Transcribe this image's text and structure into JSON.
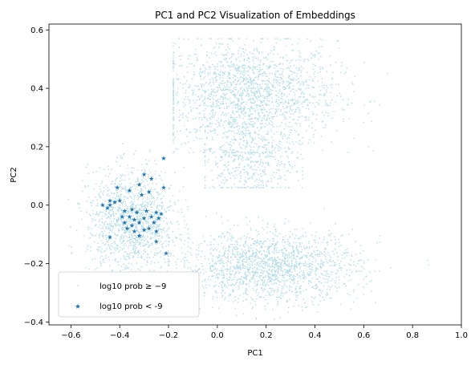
{
  "chart_data": {
    "type": "scatter",
    "title": "PC1 and PC2 Visualization of Embeddings",
    "xlabel": "PC1",
    "ylabel": "PC2",
    "xlim": [
      -0.69,
      1.0
    ],
    "ylim": [
      -0.41,
      0.62
    ],
    "xticks": [
      "-0.6",
      "-0.4",
      "-0.2",
      "0.0",
      "0.2",
      "0.4",
      "0.6",
      "0.8",
      "1.0"
    ],
    "yticks": [
      "-0.4",
      "-0.2",
      "0.0",
      "0.2",
      "0.4",
      "0.6"
    ],
    "grid": false,
    "legend_position": "lower-left",
    "series": [
      {
        "name": "log10 prob ≥ −9",
        "marker": "dot",
        "color": "#add8e6",
        "clusters": [
          {
            "label": "upper",
            "center": [
              0.13,
              0.38
            ],
            "spread": [
              0.18,
              0.09
            ],
            "extent_x": [
              -0.18,
              0.72
            ],
            "extent_y": [
              0.18,
              0.57
            ]
          },
          {
            "label": "upper-tail",
            "center": [
              0.12,
              0.16
            ],
            "spread": [
              0.1,
              0.07
            ],
            "extent_x": [
              -0.05,
              0.35
            ],
            "extent_y": [
              0.06,
              0.3
            ]
          },
          {
            "label": "left",
            "center": [
              -0.35,
              -0.06
            ],
            "spread": [
              0.09,
              0.09
            ],
            "extent_x": [
              -0.61,
              -0.12
            ],
            "extent_y": [
              -0.3,
              0.21
            ]
          },
          {
            "label": "lower",
            "center": [
              0.22,
              -0.21
            ],
            "spread": [
              0.18,
              0.06
            ],
            "extent_x": [
              -0.2,
              0.92
            ],
            "extent_y": [
              -0.39,
              0.03
            ]
          }
        ]
      },
      {
        "name": "log10 prob < -9",
        "marker": "star",
        "color": "#1f77b4",
        "points": [
          [
            -0.22,
            0.16
          ],
          [
            -0.3,
            0.105
          ],
          [
            -0.41,
            0.06
          ],
          [
            -0.27,
            0.09
          ],
          [
            -0.36,
            0.05
          ],
          [
            -0.32,
            0.07
          ],
          [
            -0.28,
            0.045
          ],
          [
            -0.22,
            0.06
          ],
          [
            -0.42,
            0.01
          ],
          [
            -0.4,
            0.015
          ],
          [
            -0.44,
            0.015
          ],
          [
            -0.31,
            0.035
          ],
          [
            -0.45,
            -0.01
          ],
          [
            -0.47,
            0.0
          ],
          [
            -0.44,
            0.0
          ],
          [
            -0.38,
            -0.02
          ],
          [
            -0.35,
            -0.015
          ],
          [
            -0.33,
            -0.025
          ],
          [
            -0.29,
            -0.02
          ],
          [
            -0.25,
            -0.025
          ],
          [
            -0.23,
            -0.03
          ],
          [
            -0.39,
            -0.04
          ],
          [
            -0.36,
            -0.04
          ],
          [
            -0.34,
            -0.05
          ],
          [
            -0.3,
            -0.045
          ],
          [
            -0.27,
            -0.04
          ],
          [
            -0.24,
            -0.045
          ],
          [
            -0.38,
            -0.06
          ],
          [
            -0.35,
            -0.07
          ],
          [
            -0.32,
            -0.06
          ],
          [
            -0.26,
            -0.06
          ],
          [
            -0.37,
            -0.08
          ],
          [
            -0.34,
            -0.09
          ],
          [
            -0.3,
            -0.085
          ],
          [
            -0.28,
            -0.08
          ],
          [
            -0.32,
            -0.105
          ],
          [
            -0.25,
            -0.09
          ],
          [
            -0.44,
            -0.11
          ],
          [
            -0.25,
            -0.125
          ],
          [
            -0.21,
            -0.165
          ]
        ]
      }
    ]
  }
}
